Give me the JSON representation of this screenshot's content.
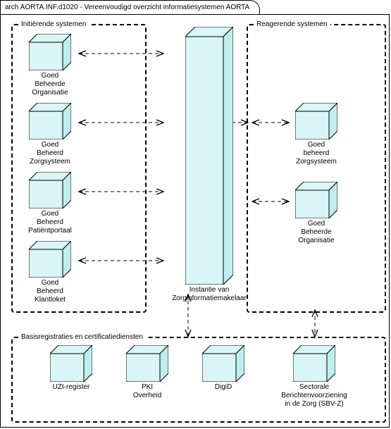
{
  "title": "arch AORTA.INF.d1020 - Vereenvoudigd overzicht informatiesystemen AORTA",
  "colors": {
    "node_fill_top": "#d9f5f5",
    "node_fill_side": "#bfeeee",
    "node_stroke": "#000000",
    "border": "#000000",
    "background": "#ffffff"
  },
  "font_size": 10,
  "groups": {
    "initiating": {
      "label": "Initiërende systemen"
    },
    "reacting": {
      "label": "Reagerende systemen"
    },
    "basis": {
      "label": "Basisregistraties en certificatiediensten"
    }
  },
  "nodes": {
    "init_org": {
      "label": "Goed\nBeheerde\nOrganisatie"
    },
    "init_zorg": {
      "label": "Goed\nBeheerd\nZorgsysteem"
    },
    "init_portal": {
      "label": "Goed\nBeheerd\nPatiëntportaal"
    },
    "init_klant": {
      "label": "Goed\nBeheerd\nKlantloket"
    },
    "broker": {
      "label": "Instantie van\nZorginformatiemakelaar"
    },
    "react_zorg": {
      "label": "Goed\nbeheerd\nZorgsysteem"
    },
    "react_org": {
      "label": "Goed\nBeheerde\nOrganisatie"
    },
    "uzi": {
      "label": "UZI-register"
    },
    "pki": {
      "label": "PKI\nOverheid"
    },
    "digid": {
      "label": "DigiD"
    },
    "sbvz": {
      "label": "Sectorale\nBerichtenvoorziening\nin de Zorg (SBV-Z)"
    }
  }
}
